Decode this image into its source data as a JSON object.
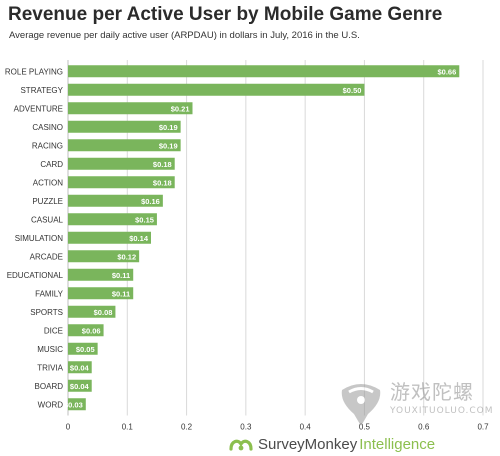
{
  "chart_data": {
    "type": "bar",
    "orientation": "horizontal",
    "title": "Revenue per Active User by Mobile Game Genre",
    "subtitle": "Average revenue per daily active user (ARPDAU) in dollars in July, 2016 in the U.S.",
    "categories": [
      "ROLE PLAYING",
      "STRATEGY",
      "ADVENTURE",
      "CASINO",
      "RACING",
      "CARD",
      "ACTION",
      "PUZZLE",
      "CASUAL",
      "SIMULATION",
      "ARCADE",
      "EDUCATIONAL",
      "FAMILY",
      "SPORTS",
      "DICE",
      "MUSIC",
      "TRIVIA",
      "BOARD",
      "WORD"
    ],
    "values": [
      0.66,
      0.5,
      0.21,
      0.19,
      0.19,
      0.18,
      0.18,
      0.16,
      0.15,
      0.14,
      0.12,
      0.11,
      0.11,
      0.08,
      0.06,
      0.05,
      0.04,
      0.04,
      0.03
    ],
    "data_labels": [
      "$0.66",
      "$0.50",
      "$0.21",
      "$0.19",
      "$0.19",
      "$0.18",
      "$0.18",
      "$0.16",
      "$0.15",
      "$0.14",
      "$0.12",
      "$0.11",
      "$0.11",
      "$0.08",
      "$0.06",
      "$0.05",
      "$0.04",
      "$0.04",
      "$0.03"
    ],
    "x_ticks": [
      "0",
      "0.1",
      "0.2",
      "0.3",
      "0.4",
      "0.5",
      "0.6",
      "0.7"
    ],
    "xlim": [
      0,
      0.7
    ],
    "grid": "vertical",
    "bar_color": "#7ab55c",
    "label_color": "#ffffff"
  },
  "footer": {
    "brand": "SurveyMonkey",
    "brand_suffix": "Intelligence"
  },
  "watermark": {
    "name": "游戏陀螺",
    "url": "YOUXITUOLUO.COM"
  },
  "colors": {
    "bar": "#7ab55c",
    "grid": "#d9d9d9",
    "axis_text": "#333333",
    "brand_green": "#8cbf4e"
  }
}
